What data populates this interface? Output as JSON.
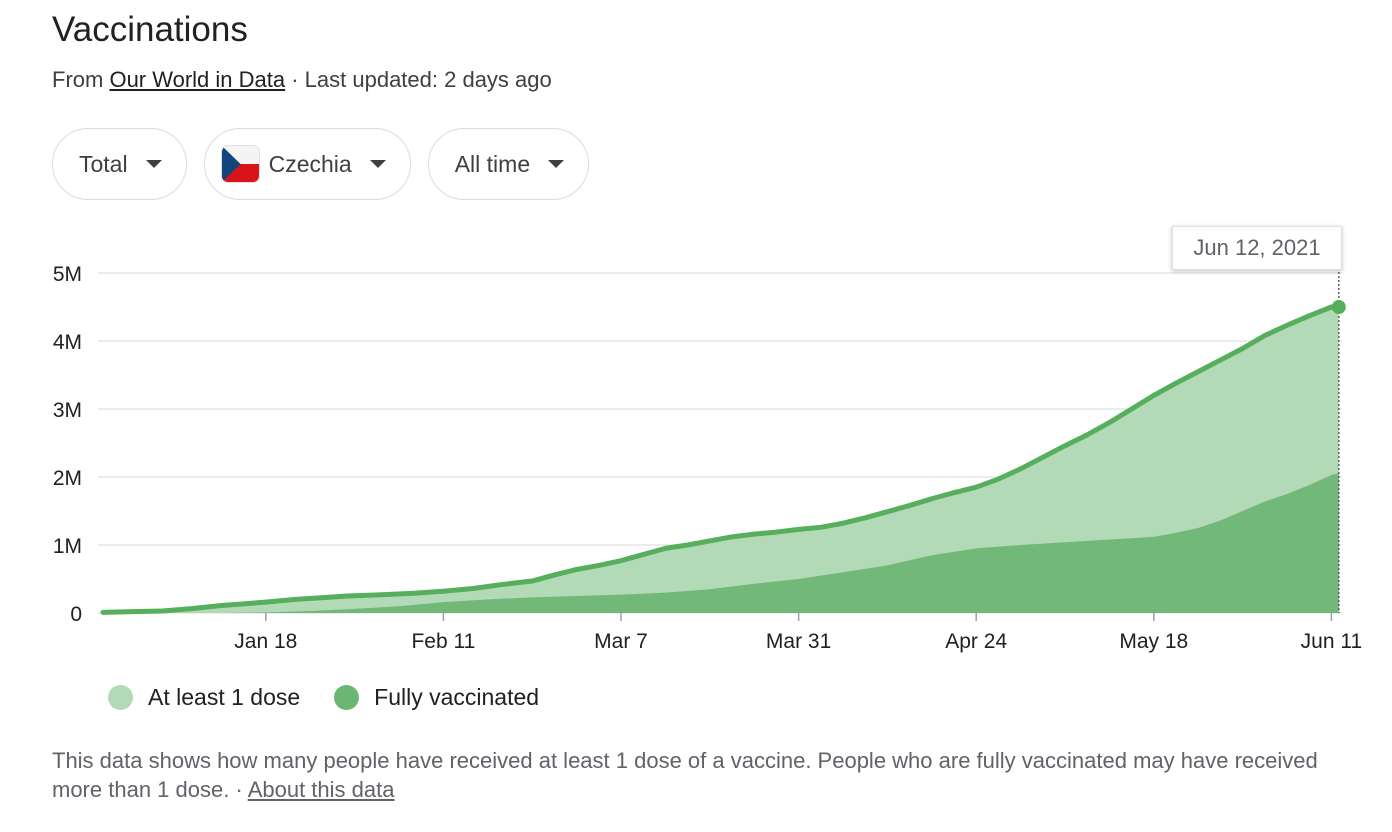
{
  "header": {
    "title": "Vaccinations",
    "source_prefix": "From",
    "source_link": "Our World in Data",
    "updated": "· Last updated: 2 days ago"
  },
  "filters": {
    "metric": "Total",
    "country": "Czechia",
    "range": "All time"
  },
  "tooltip": {
    "date": "Jun 12, 2021"
  },
  "legend": {
    "first_dose": "At least 1 dose",
    "fully": "Fully vaccinated"
  },
  "footer": {
    "note": "This data shows how many people have received at least 1 dose of a vaccine. People who are fully vaccinated may have received more than 1 dose.",
    "separator": "·",
    "about_link": "About this data"
  },
  "colors": {
    "first_dose_fill": "#b3dab7",
    "first_dose_line": "#57ae5c",
    "fully_fill": "#72b878",
    "legend_first_dose": "#b3dab7",
    "legend_fully": "#6bb672",
    "grid": "#e6e6e6"
  },
  "chart_data": {
    "type": "area",
    "x_start": "Dec 27, 2020",
    "x_end": "Jun 12, 2021",
    "x_tick_labels": [
      "Jan 18",
      "Feb 11",
      "Mar 7",
      "Mar 31",
      "Apr 24",
      "May 18",
      "Jun 11"
    ],
    "x_tick_days": [
      22,
      46,
      70,
      94,
      118,
      142,
      166
    ],
    "y_tick_labels": [
      "0",
      "1M",
      "2M",
      "3M",
      "4M",
      "5M"
    ],
    "y_tick_values": [
      0,
      1000000,
      2000000,
      3000000,
      4000000,
      5000000
    ],
    "ylim": [
      0,
      5000000
    ],
    "grid": true,
    "series": [
      {
        "name": "At least 1 dose",
        "days": [
          0,
          8,
          12,
          16,
          19,
          22,
          26,
          29,
          33,
          38,
          42,
          46,
          50,
          54,
          58,
          61,
          64,
          67,
          70,
          72,
          74,
          76,
          79,
          82,
          85,
          88,
          91,
          94,
          97,
          100,
          103,
          106,
          109,
          112,
          115,
          118,
          121,
          124,
          127,
          130,
          133,
          136,
          139,
          142,
          145,
          148,
          151,
          154,
          157,
          160,
          163,
          166,
          167
        ],
        "values": [
          10000,
          30000,
          65000,
          110000,
          135000,
          160000,
          200000,
          220000,
          250000,
          270000,
          290000,
          320000,
          360000,
          420000,
          470000,
          560000,
          640000,
          700000,
          770000,
          830000,
          890000,
          950000,
          1000000,
          1060000,
          1120000,
          1160000,
          1190000,
          1230000,
          1260000,
          1320000,
          1400000,
          1490000,
          1580000,
          1680000,
          1770000,
          1850000,
          1970000,
          2120000,
          2290000,
          2460000,
          2620000,
          2800000,
          3000000,
          3200000,
          3380000,
          3550000,
          3720000,
          3890000,
          4080000,
          4230000,
          4370000,
          4500000,
          4500000
        ]
      },
      {
        "name": "Fully vaccinated",
        "days": [
          0,
          16,
          22,
          28,
          34,
          40,
          46,
          52,
          58,
          64,
          70,
          76,
          82,
          88,
          94,
          100,
          106,
          112,
          118,
          124,
          130,
          136,
          142,
          145,
          148,
          151,
          154,
          157,
          160,
          163,
          166,
          167
        ],
        "values": [
          0,
          0,
          10000,
          30000,
          60000,
          100000,
          160000,
          200000,
          230000,
          250000,
          270000,
          300000,
          350000,
          430000,
          500000,
          600000,
          700000,
          850000,
          950000,
          1000000,
          1040000,
          1080000,
          1120000,
          1180000,
          1250000,
          1360000,
          1500000,
          1640000,
          1750000,
          1880000,
          2030000,
          2060000
        ]
      }
    ]
  }
}
